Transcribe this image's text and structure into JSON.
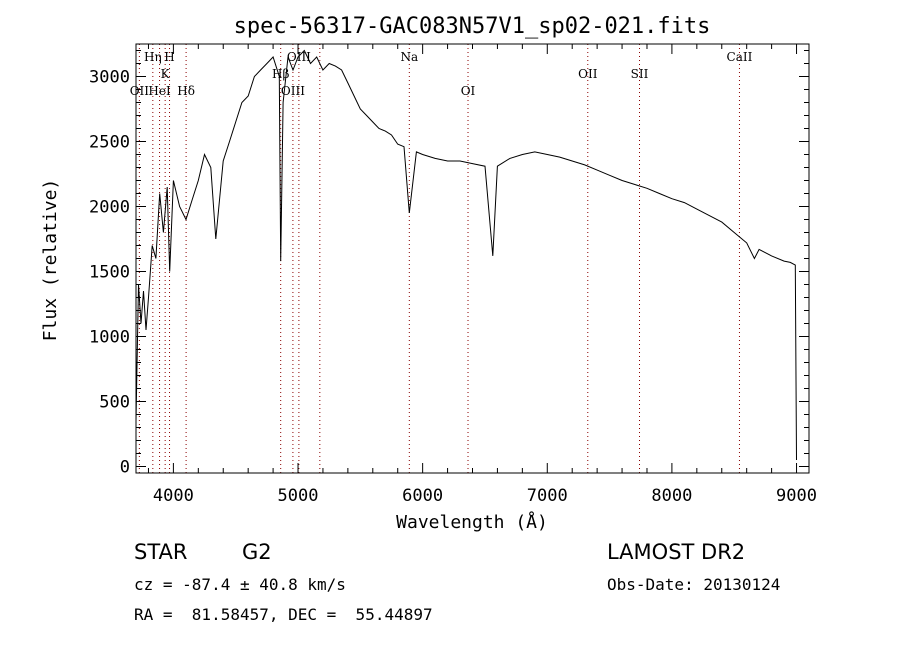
{
  "chart_data": {
    "type": "line",
    "title": "spec-56317-GAC083N57V1_sp02-021.fits",
    "xlabel": "Wavelength (Å)",
    "ylabel": "Flux (relative)",
    "xlim": [
      3700,
      9100
    ],
    "ylim": [
      -50,
      3250
    ],
    "xticks": [
      4000,
      5000,
      6000,
      7000,
      8000,
      9000
    ],
    "yticks": [
      0,
      500,
      1000,
      1500,
      2000,
      2500,
      3000
    ],
    "series": [
      {
        "x": [
          3700,
          3720,
          3740,
          3760,
          3780,
          3800,
          3830,
          3860,
          3890,
          3920,
          3950,
          3970,
          4000,
          4050,
          4101,
          4150,
          4200,
          4250,
          4300,
          4340,
          4400,
          4450,
          4500,
          4550,
          4600,
          4650,
          4700,
          4750,
          4800,
          4850,
          4861,
          4880,
          4920,
          4960,
          5000,
          5050,
          5100,
          5150,
          5200,
          5250,
          5300,
          5350,
          5400,
          5450,
          5500,
          5550,
          5600,
          5650,
          5700,
          5750,
          5800,
          5850,
          5893,
          5950,
          6000,
          6100,
          6200,
          6300,
          6400,
          6500,
          6563,
          6600,
          6700,
          6800,
          6900,
          7000,
          7100,
          7200,
          7300,
          7400,
          7500,
          7600,
          7700,
          7800,
          7900,
          8000,
          8100,
          8200,
          8300,
          8400,
          8500,
          8550,
          8600,
          8662,
          8700,
          8800,
          8900,
          8950,
          8990,
          9000
        ],
        "y": [
          350,
          1400,
          1100,
          1350,
          1050,
          1300,
          1700,
          1600,
          2100,
          1800,
          2150,
          1500,
          2200,
          2000,
          1900,
          2050,
          2200,
          2400,
          2300,
          1750,
          2350,
          2500,
          2650,
          2800,
          2850,
          3000,
          3050,
          3100,
          3150,
          3000,
          1580,
          2800,
          3150,
          3050,
          3150,
          3200,
          3100,
          3150,
          3050,
          3100,
          3080,
          3050,
          2950,
          2850,
          2750,
          2700,
          2650,
          2600,
          2580,
          2550,
          2480,
          2460,
          1950,
          2420,
          2400,
          2370,
          2350,
          2350,
          2330,
          2310,
          1620,
          2310,
          2370,
          2400,
          2420,
          2400,
          2380,
          2350,
          2320,
          2280,
          2240,
          2200,
          2170,
          2140,
          2100,
          2060,
          2030,
          1980,
          1930,
          1880,
          1800,
          1760,
          1720,
          1600,
          1670,
          1620,
          1580,
          1570,
          1550,
          50
        ]
      }
    ],
    "lines": [
      {
        "label": "OII",
        "wavelength": 3727,
        "row": 3
      },
      {
        "label": "Hη",
        "wavelength": 3835,
        "row": 1
      },
      {
        "label": "HeI",
        "wavelength": 3889,
        "row": 3
      },
      {
        "label": "K",
        "wavelength": 3934,
        "row": 2
      },
      {
        "label": "H",
        "wavelength": 3969,
        "row": 1
      },
      {
        "label": "Hδ",
        "wavelength": 4102,
        "row": 3
      },
      {
        "label": "Hβ",
        "wavelength": 4861,
        "row": 2
      },
      {
        "label": "OIII",
        "wavelength": 4959,
        "row": 3
      },
      {
        "label": "OIII",
        "wavelength": 5007,
        "row": 1
      },
      {
        "label": "",
        "wavelength": 5175,
        "row": 0
      },
      {
        "label": "Na",
        "wavelength": 5893,
        "row": 1
      },
      {
        "label": "OI",
        "wavelength": 6364,
        "row": 3
      },
      {
        "label": "OII",
        "wavelength": 7325,
        "row": 2
      },
      {
        "label": "SII",
        "wavelength": 7740,
        "row": 2
      },
      {
        "label": "CaII",
        "wavelength": 8542,
        "row": 1
      }
    ]
  },
  "info": {
    "object_class": "STAR",
    "subclass": "G2",
    "survey": "LAMOST DR2",
    "redshift_text": "cz = -87.4 ± 40.8 km/s",
    "obs_date_text": "Obs-Date: 20130124",
    "coords_text": "RA =  81.58457, DEC =  55.44897"
  },
  "colors": {
    "line_marker": "#8b0000",
    "spectrum": "#000000"
  }
}
